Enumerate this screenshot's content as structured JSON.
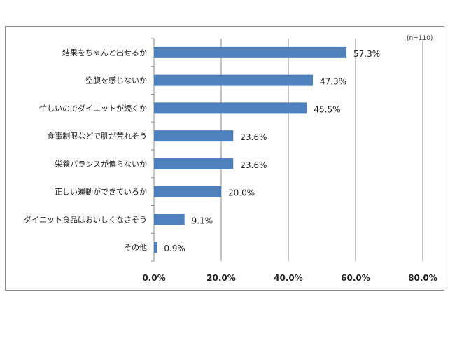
{
  "chart_data": {
    "type": "bar",
    "orientation": "horizontal",
    "note": "(n=110)",
    "categories": [
      "結果をちゃんと出せるか",
      "空腹を感じないか",
      "忙しいのでダイエットが続くか",
      "食事制限などで肌が荒れそう",
      "栄養バランスが偏らないか",
      "正しい運動ができているか",
      "ダイエット食品はおいしくなさそう",
      "その他"
    ],
    "values": [
      57.3,
      47.3,
      45.5,
      23.6,
      23.6,
      20.0,
      9.1,
      0.9
    ],
    "value_labels": [
      "57.3%",
      "47.3%",
      "45.5%",
      "23.6%",
      "23.6%",
      "20.0%",
      "9.1%",
      "0.9%"
    ],
    "xlim": [
      0,
      80
    ],
    "xticks": [
      0,
      20,
      40,
      60,
      80
    ],
    "xtick_labels": [
      "0.0%",
      "20.0%",
      "40.0%",
      "60.0%",
      "80.0%"
    ],
    "grid": "vertical",
    "bar_color": "#4f81bd"
  }
}
